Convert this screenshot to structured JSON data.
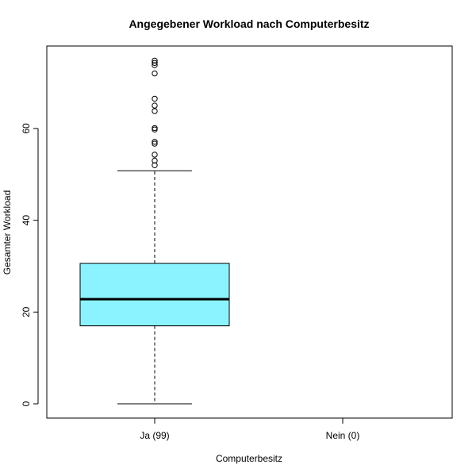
{
  "chart_data": {
    "type": "boxplot",
    "title": "Angegebener Workload nach Computerbesitz",
    "xlabel": "Computerbesitz",
    "ylabel": "Gesamter Workload",
    "categories": [
      "Ja (99)",
      "Nein (0)"
    ],
    "yticks": [
      0,
      20,
      40,
      60
    ],
    "ylim": [
      -3,
      78
    ],
    "box_color": "#8AF3FF",
    "boxes": [
      {
        "category": "Ja (99)",
        "whisker_low": 0,
        "q1": 17,
        "median": 22.8,
        "q3": 30.6,
        "whisker_high": 50.8,
        "outliers": [
          52,
          53,
          54.3,
          56.7,
          57.1,
          59.8,
          60.1,
          63.8,
          65,
          66.5,
          72,
          73.8,
          74.3,
          74.8
        ]
      }
    ]
  }
}
